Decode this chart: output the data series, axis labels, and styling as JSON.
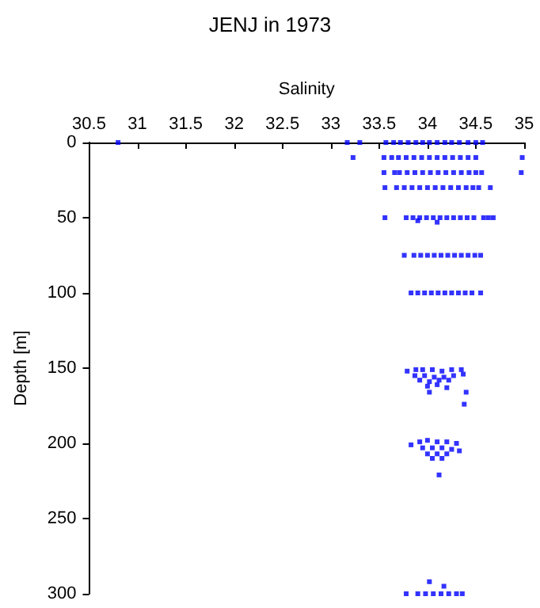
{
  "chart_data": {
    "type": "scatter",
    "title": "JENJ in 1973",
    "xlabel": "Salinity",
    "ylabel": "Depth [m]",
    "xlim": [
      30.5,
      35
    ],
    "xticks": [
      30.5,
      31,
      31.5,
      32,
      32.5,
      33,
      33.5,
      34,
      34.5,
      35
    ],
    "ylim": [
      300,
      0
    ],
    "yticks": [
      0,
      50,
      100,
      150,
      200,
      250,
      300
    ],
    "grid": false,
    "marker": "square",
    "series": [
      {
        "color": "#0000ff",
        "x": [
          30.8,
          33.17,
          33.3,
          33.57,
          33.65,
          33.72,
          33.8,
          33.88,
          33.95,
          34.02,
          34.1,
          34.18,
          34.25,
          34.33,
          34.42,
          34.5,
          34.57
        ],
        "values": [
          0,
          0,
          0,
          0,
          0,
          0,
          0,
          0,
          0,
          0,
          0,
          0,
          0,
          0,
          0,
          0,
          0
        ]
      },
      {
        "color": "#0000ff",
        "x": [
          33.23,
          33.55,
          33.63,
          33.7,
          33.78,
          33.86,
          33.94,
          34.02,
          34.1,
          34.18,
          34.26,
          34.34,
          34.42,
          34.5,
          34.98
        ],
        "values": [
          10,
          10,
          10,
          10,
          10,
          10,
          10,
          10,
          10,
          10,
          10,
          10,
          10,
          10,
          10
        ]
      },
      {
        "color": "#0000ff",
        "x": [
          33.55,
          33.66,
          33.71,
          33.79,
          33.87,
          33.95,
          34.03,
          34.11,
          34.19,
          34.27,
          34.35,
          34.43,
          34.5,
          34.56,
          34.97
        ],
        "values": [
          20,
          20,
          20,
          20,
          20,
          20,
          20,
          20,
          20,
          20,
          20,
          20,
          20,
          20,
          20
        ]
      },
      {
        "color": "#0000ff",
        "x": [
          33.56,
          33.68,
          33.76,
          33.84,
          33.92,
          34.0,
          34.08,
          34.16,
          34.24,
          34.32,
          34.4,
          34.47,
          34.53,
          34.65
        ],
        "values": [
          30,
          30,
          30,
          30,
          30,
          30,
          30,
          30,
          30,
          30,
          30,
          30,
          30,
          30
        ]
      },
      {
        "color": "#0000ff",
        "x": [
          33.56,
          33.78,
          33.85,
          33.92,
          33.99,
          34.06,
          34.13,
          34.2,
          34.27,
          34.34,
          34.41,
          34.48,
          34.58,
          34.63,
          34.68,
          33.9,
          34.1
        ],
        "values": [
          50,
          50,
          50,
          50,
          50,
          50,
          50,
          50,
          50,
          50,
          50,
          50,
          50,
          50,
          50,
          52,
          53
        ]
      },
      {
        "color": "#0000ff",
        "x": [
          33.76,
          33.86,
          33.93,
          34.0,
          34.07,
          34.14,
          34.21,
          34.28,
          34.35,
          34.42,
          34.49,
          34.55
        ],
        "values": [
          75,
          75,
          75,
          75,
          75,
          75,
          75,
          75,
          75,
          75,
          75,
          75
        ]
      },
      {
        "color": "#0000ff",
        "x": [
          33.83,
          33.9,
          33.97,
          34.04,
          34.11,
          34.18,
          34.25,
          34.32,
          34.39,
          34.46,
          34.55
        ],
        "values": [
          100,
          100,
          100,
          100,
          100,
          100,
          100,
          100,
          100,
          100,
          100
        ]
      },
      {
        "color": "#0000ff",
        "x": [
          33.79,
          33.88,
          33.95,
          34.05,
          34.15,
          34.25,
          34.35,
          34.37,
          33.87,
          33.97,
          34.07,
          34.17,
          34.27,
          33.92,
          34.02,
          34.12,
          34.22,
          34.0,
          34.1,
          34.2,
          34.02,
          34.4,
          34.38
        ],
        "values": [
          152,
          151,
          151,
          151,
          152,
          151,
          151,
          154,
          155,
          155,
          156,
          156,
          155,
          158,
          159,
          158,
          158,
          162,
          161,
          163,
          166,
          166,
          174
        ]
      },
      {
        "color": "#0000ff",
        "x": [
          33.83,
          33.92,
          34.0,
          34.1,
          34.2,
          34.3,
          33.95,
          34.05,
          34.15,
          34.25,
          34.33,
          34.0,
          34.1,
          34.2,
          34.05,
          34.15,
          34.12
        ],
        "values": [
          201,
          199,
          198,
          199,
          199,
          200,
          203,
          203,
          203,
          204,
          205,
          207,
          207,
          207,
          210,
          210,
          221
        ]
      },
      {
        "color": "#0000ff",
        "x": [
          33.78,
          33.9,
          33.98,
          34.06,
          34.14,
          34.22,
          34.3,
          34.36,
          34.02,
          34.17
        ],
        "values": [
          300,
          300,
          300,
          300,
          300,
          300,
          300,
          300,
          292,
          295
        ]
      }
    ]
  }
}
